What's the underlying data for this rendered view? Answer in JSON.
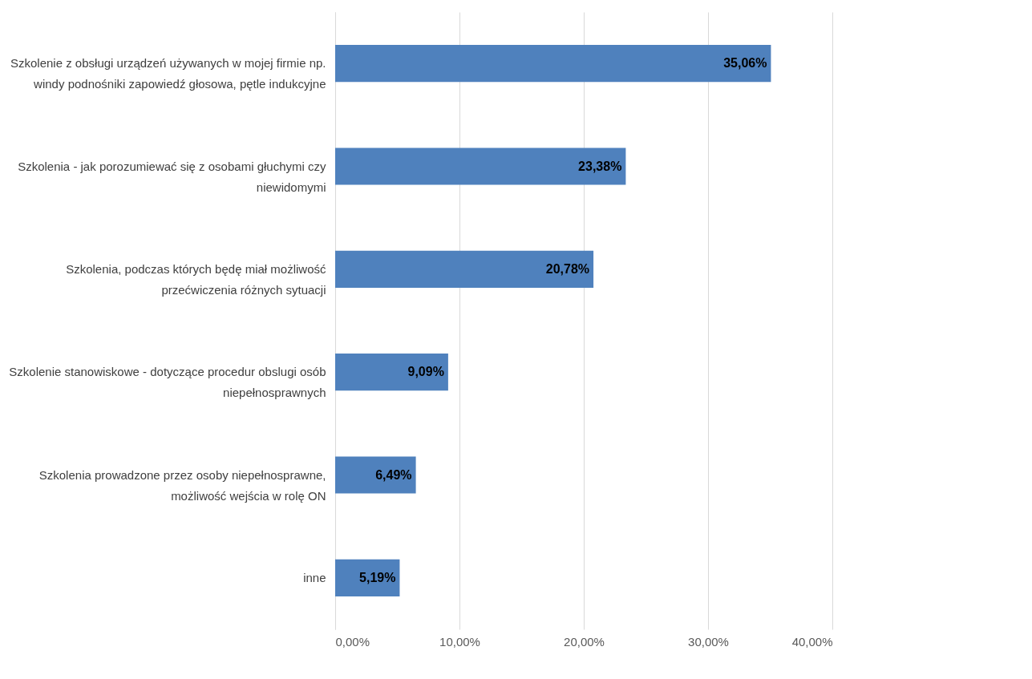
{
  "chart_data": {
    "type": "bar",
    "orientation": "horizontal",
    "categories": [
      "Szkolenie z obsługi urządzeń używanych w mojej firmie np. windy podnośniki zapowiedź głosowa, pętle indukcyjne",
      "Szkolenia - jak porozumiewać się z osobami głuchymi czy niewidomymi",
      "Szkolenia, podczas których będę miał możliwość przećwiczenia różnych sytuacji",
      "Szkolenie stanowiskowe - dotyczące procedur obslugi osób niepełnosprawnych",
      "Szkolenia prowadzone przez osoby niepełnosprawne, możliwość wejścia w rolę ON",
      "inne"
    ],
    "values": [
      35.06,
      23.38,
      20.78,
      9.09,
      6.49,
      5.19
    ],
    "value_labels": [
      "35,06%",
      "23,38%",
      "20,78%",
      "9,09%",
      "6,49%",
      "5,19%"
    ],
    "color": "#4f81bd",
    "xlim": [
      0,
      40
    ],
    "xticks": [
      {
        "value": 0,
        "label": "0,00%"
      },
      {
        "value": 10,
        "label": "10,00%"
      },
      {
        "value": 20,
        "label": "20,00%"
      },
      {
        "value": 30,
        "label": "30,00%"
      },
      {
        "value": 40,
        "label": "40,00%"
      }
    ],
    "grid": "x"
  }
}
